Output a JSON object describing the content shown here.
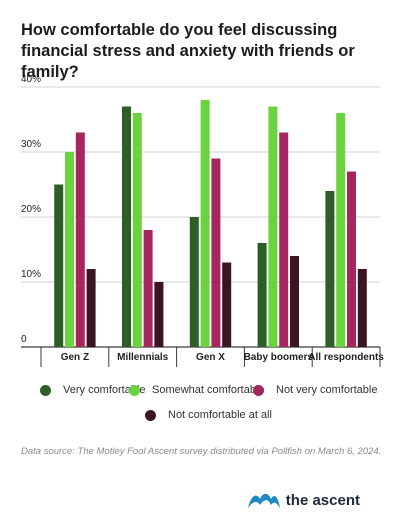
{
  "chart_data": {
    "type": "bar",
    "title": "How comfortable do you feel discussing financial stress and anxiety with friends or family?",
    "categories": [
      "Gen Z",
      "Millennials",
      "Gen X",
      "Baby boomers",
      "All respondents"
    ],
    "series": [
      {
        "name": "Very comfortable",
        "color": "#2d5e25",
        "values": [
          25,
          37,
          20,
          16,
          24
        ]
      },
      {
        "name": "Somewhat comfortable",
        "color": "#6bd33f",
        "values": [
          30,
          36,
          38,
          37,
          36
        ]
      },
      {
        "name": "Not very comfortable",
        "color": "#a6275f",
        "values": [
          33,
          18,
          29,
          33,
          27
        ]
      },
      {
        "name": "Not comfortable at all",
        "color": "#3b1524",
        "values": [
          12,
          10,
          13,
          14,
          12
        ]
      }
    ],
    "ylim": [
      0,
      40
    ],
    "yticks": [
      "0",
      "10%",
      "20%",
      "30%",
      "40%"
    ],
    "grid": true,
    "legend_position": "bottom"
  },
  "source": "Data source: The Motley Fool Ascent survey distributed via Pollfish on March 6, 2024.",
  "brand": {
    "name": "the ascent",
    "icon": "ascent-logo-icon",
    "color": "#1e88c7"
  }
}
